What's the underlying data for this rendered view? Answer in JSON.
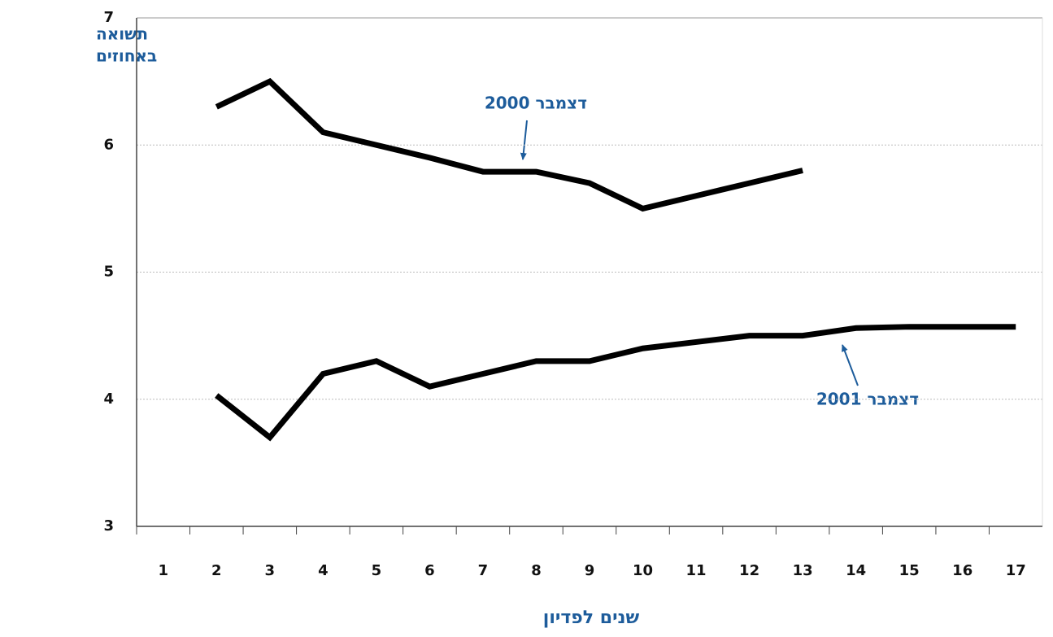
{
  "chart_data": {
    "type": "line",
    "y_label": [
      "תשואה",
      "באחוזים"
    ],
    "x_label": "שנים לפדיון",
    "categories": [
      "1",
      "2",
      "3",
      "4",
      "5",
      "6",
      "7",
      "8",
      "9",
      "10",
      "11",
      "12",
      "13",
      "14",
      "15",
      "16",
      "17"
    ],
    "series": [
      {
        "name": "דצמבר 2000",
        "color": "#000000",
        "values": [
          null,
          6.3,
          6.5,
          6.1,
          6.0,
          5.9,
          5.79,
          5.79,
          5.7,
          5.5,
          5.6,
          5.7,
          5.8,
          null,
          null,
          null,
          null
        ]
      },
      {
        "name": "דצמבר 2001",
        "color": "#000000",
        "values": [
          null,
          4.03,
          3.7,
          4.2,
          4.3,
          4.1,
          4.2,
          4.3,
          4.3,
          4.4,
          4.45,
          4.5,
          4.5,
          4.56,
          4.57,
          4.57,
          4.57
        ]
      }
    ],
    "ylim": [
      3,
      7
    ],
    "yticks": [
      3,
      4,
      5,
      6,
      7
    ],
    "grid": true
  }
}
